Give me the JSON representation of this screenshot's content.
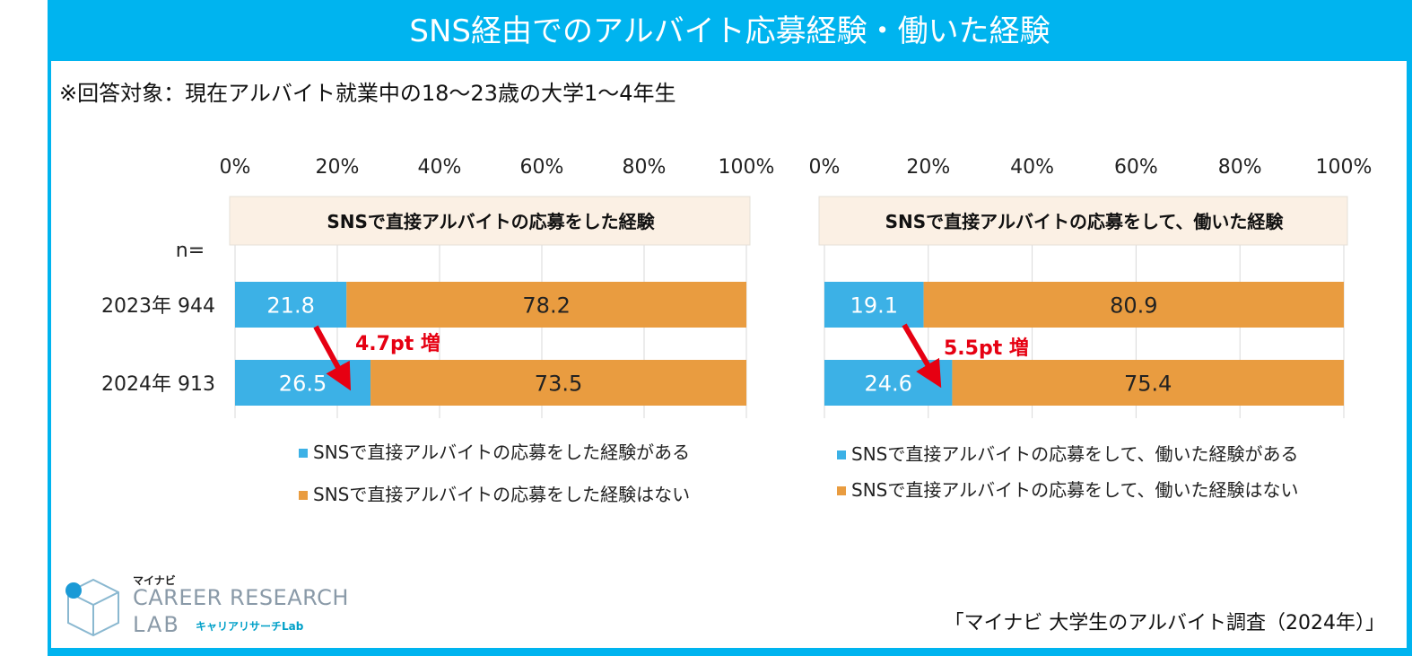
{
  "header": {
    "title": "SNS経由でのアルバイト応募経験・働いた経験",
    "subtitle": "※回答対象：現在アルバイト就業中の18～23歳の大学1～4年生",
    "source": "「マイナビ 大学生のアルバイト調査（2024年）」"
  },
  "logo": {
    "maynavi": "マイナビ",
    "line1": "CAREER RESEARCH",
    "line2": "LAB",
    "kana": "キャリアリサーチLab"
  },
  "n_label": "n=",
  "row_labels": [
    "2023年  944",
    "2024年  913"
  ],
  "colors": {
    "frame": "#00b4ef",
    "blue": "#3cb1e6",
    "orange": "#e99c40",
    "header_bg": "#fbf0e4",
    "arrow": "#e60012"
  },
  "chart_data": [
    {
      "type": "bar",
      "orientation": "horizontal-stacked-100",
      "title": "SNSで直接アルバイトの応募をした経験",
      "xlim": [
        0,
        100
      ],
      "ticks": [
        "0%",
        "20%",
        "40%",
        "60%",
        "80%",
        "100%"
      ],
      "categories": [
        "2023年",
        "2024年"
      ],
      "n": [
        944,
        913
      ],
      "series": [
        {
          "name": "SNSで直接アルバイトの応募をした経験がある",
          "values": [
            21.8,
            26.5
          ],
          "color": "#3cb1e6"
        },
        {
          "name": "SNSで直接アルバイトの応募をした経験はない",
          "values": [
            78.2,
            73.5
          ],
          "color": "#e99c40"
        }
      ],
      "annotation": "4.7pt 増",
      "grid": true,
      "legend_position": "bottom"
    },
    {
      "type": "bar",
      "orientation": "horizontal-stacked-100",
      "title": "SNSで直接アルバイトの応募をして、働いた経験",
      "xlim": [
        0,
        100
      ],
      "ticks": [
        "0%",
        "20%",
        "40%",
        "60%",
        "80%",
        "100%"
      ],
      "categories": [
        "2023年",
        "2024年"
      ],
      "n": [
        944,
        913
      ],
      "series": [
        {
          "name": "SNSで直接アルバイトの応募をして、働いた経験がある",
          "values": [
            19.1,
            24.6
          ],
          "color": "#3cb1e6"
        },
        {
          "name": "SNSで直接アルバイトの応募をして、働いた経験はない",
          "values": [
            80.9,
            75.4
          ],
          "color": "#e99c40"
        }
      ],
      "annotation": "5.5pt 増",
      "grid": true,
      "legend_position": "bottom"
    }
  ]
}
